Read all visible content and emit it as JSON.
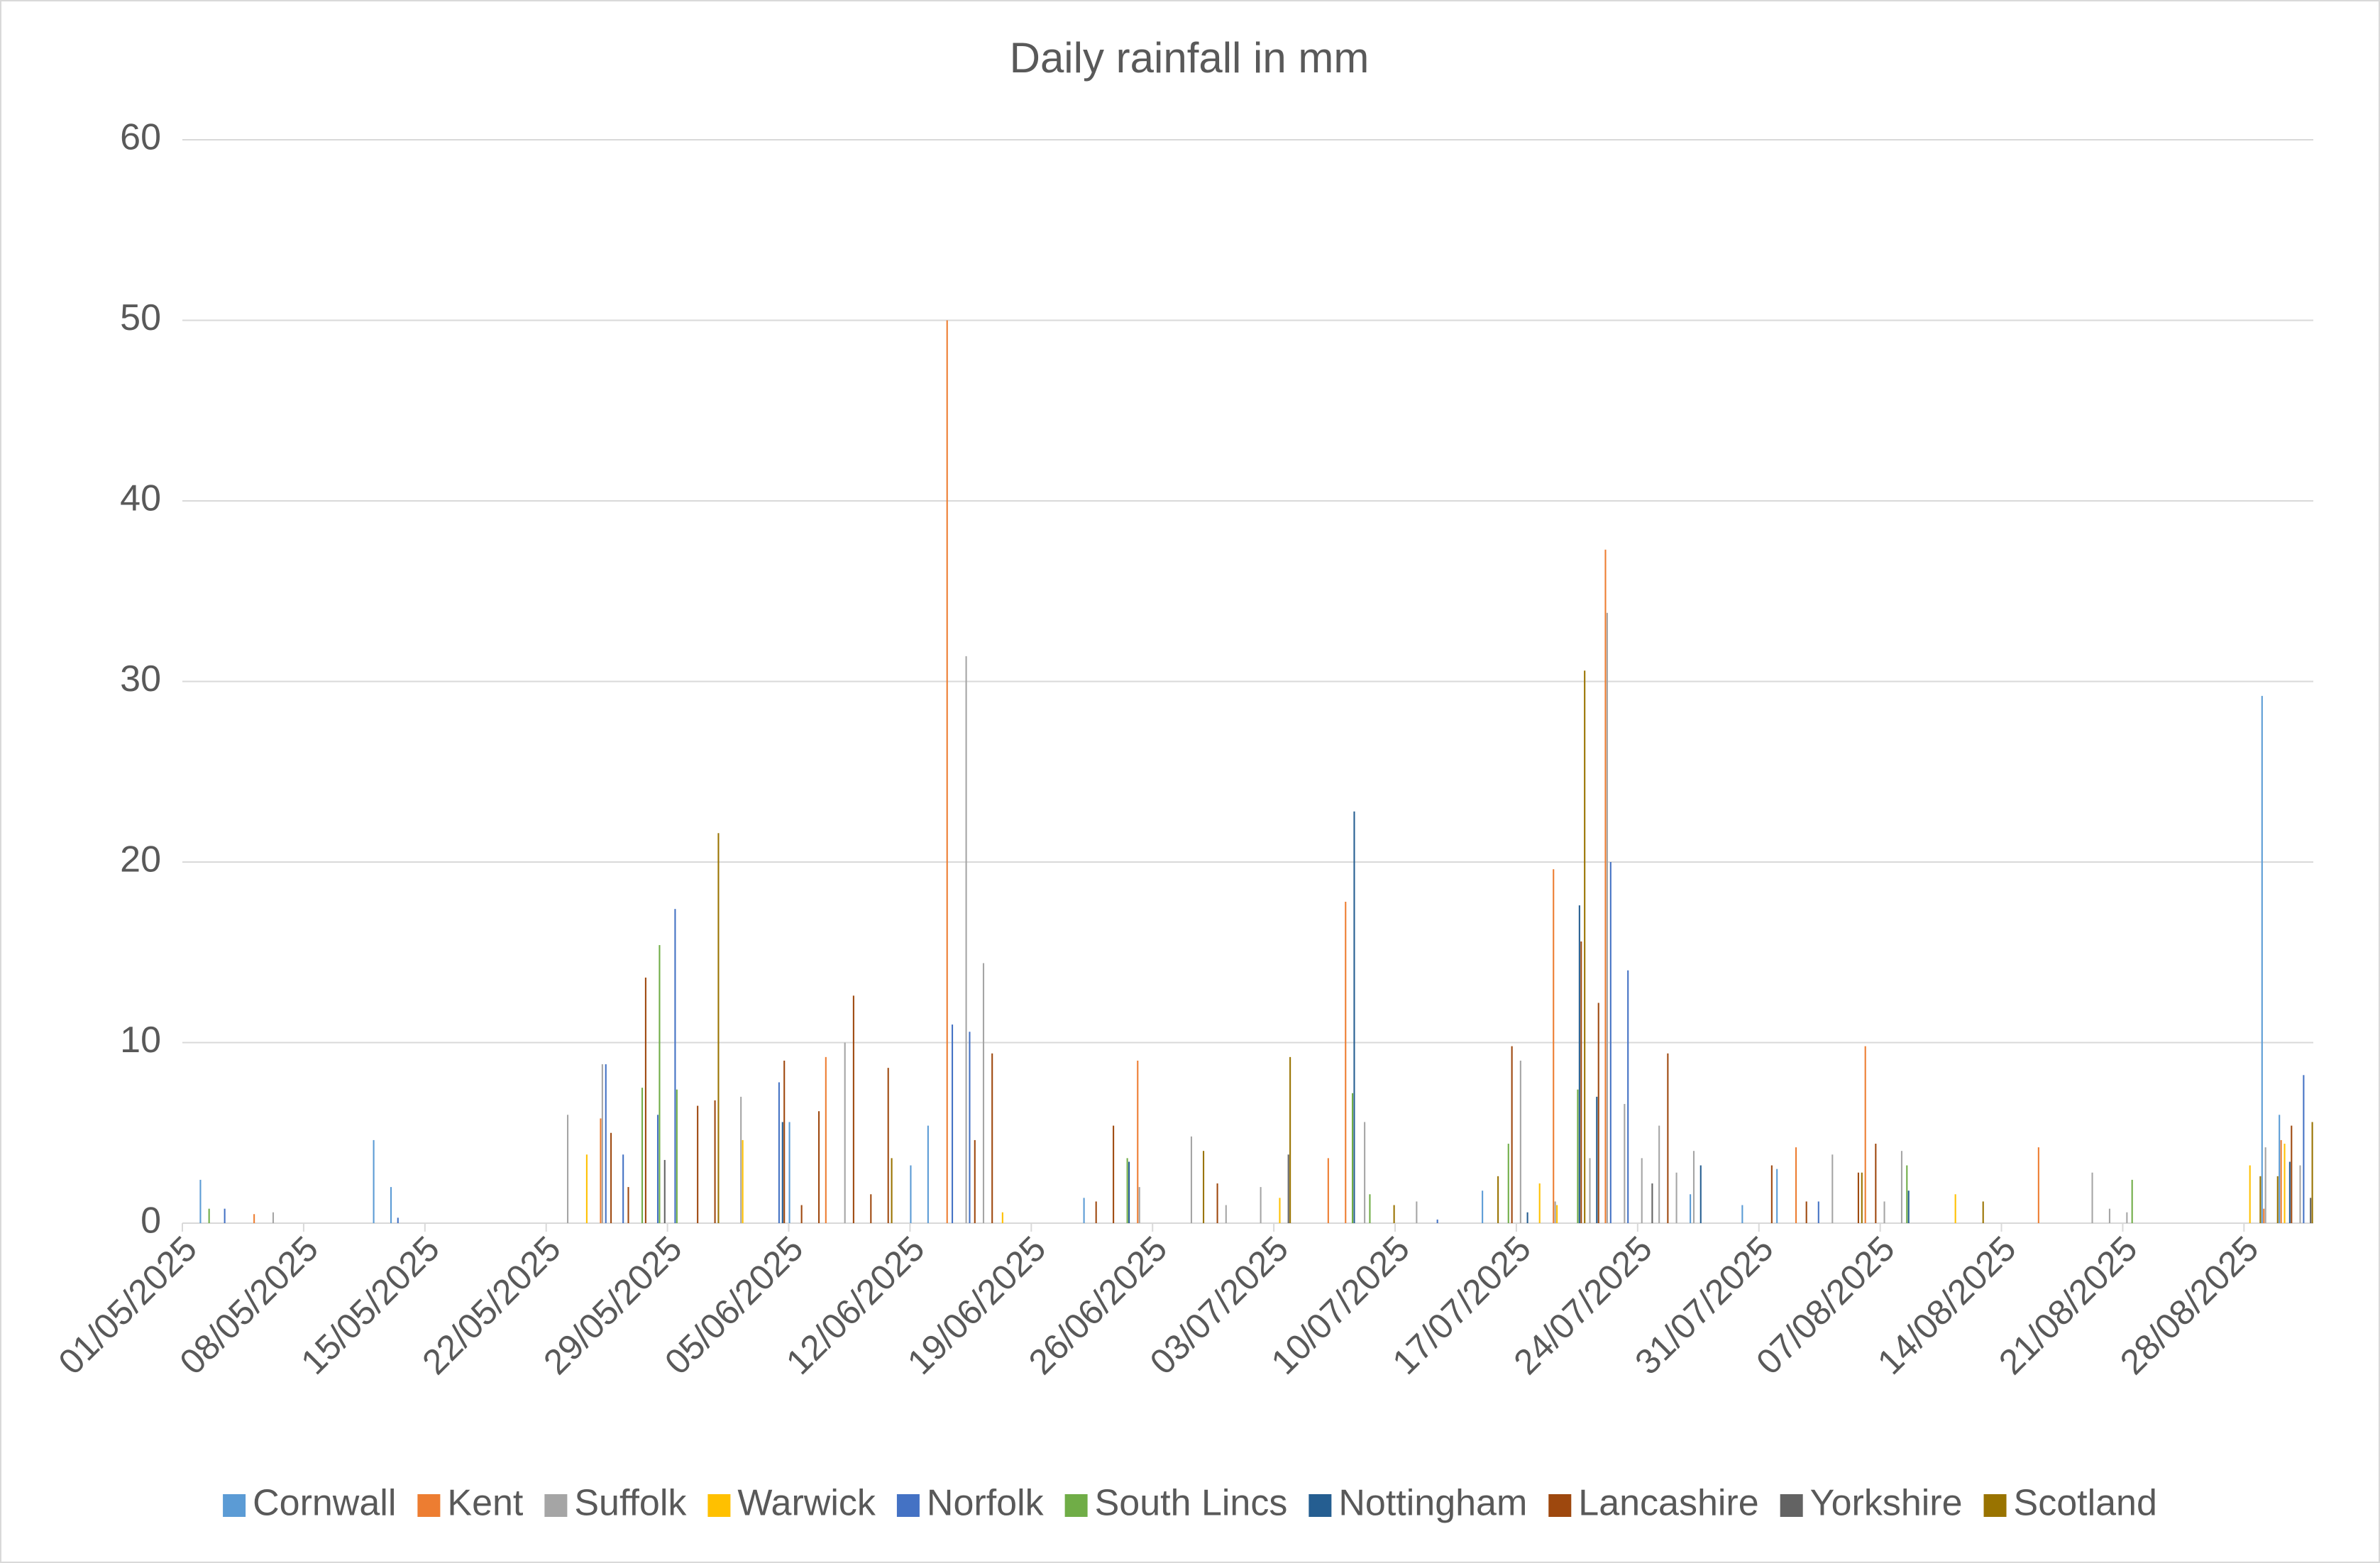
{
  "chart_data": {
    "type": "bar",
    "title": "Daily rainfall in mm",
    "categories": [
      "01/05/2025",
      null,
      null,
      null,
      null,
      null,
      null,
      "08/05/2025",
      null,
      null,
      null,
      null,
      null,
      null,
      "15/05/2025",
      null,
      null,
      null,
      null,
      null,
      null,
      "22/05/2025",
      null,
      null,
      null,
      null,
      null,
      null,
      "29/05/2025",
      null,
      null,
      null,
      null,
      null,
      null,
      "05/06/2025",
      null,
      null,
      null,
      null,
      null,
      null,
      "12/06/2025",
      null,
      null,
      null,
      null,
      null,
      null,
      "19/06/2025",
      null,
      null,
      null,
      null,
      null,
      null,
      "26/06/2025",
      null,
      null,
      null,
      null,
      null,
      null,
      "03/07/2025",
      null,
      null,
      null,
      null,
      null,
      null,
      "10/07/2025",
      null,
      null,
      null,
      null,
      null,
      null,
      "17/07/2025",
      null,
      null,
      null,
      null,
      null,
      null,
      "24/07/2025",
      null,
      null,
      null,
      null,
      null,
      null,
      "31/07/2025",
      null,
      null,
      null,
      null,
      null,
      null,
      "07/08/2025",
      null,
      null,
      null,
      null,
      null,
      null,
      "14/08/2025",
      null,
      null,
      null,
      null,
      null,
      null,
      "21/08/2025",
      null,
      null,
      null,
      null,
      null,
      null,
      "28/08/2025",
      null,
      null,
      null
    ],
    "series": [
      {
        "name": "Cornwall",
        "color": "#5B9BD5",
        "values": [
          0,
          2.4,
          0,
          0,
          0,
          0,
          0,
          0,
          0,
          0,
          0,
          4.6,
          2.0,
          0,
          0,
          0,
          0,
          0,
          0,
          0,
          0,
          0,
          0,
          0,
          0,
          0,
          0,
          0,
          0,
          0,
          0,
          0,
          0,
          0,
          0,
          5.6,
          0,
          0,
          0,
          0,
          0,
          0,
          3.2,
          5.4,
          0,
          0,
          0,
          0,
          0,
          0,
          0,
          0,
          1.4,
          0,
          0,
          0,
          0,
          0,
          0,
          0,
          0,
          0,
          0,
          0,
          0,
          0,
          0,
          0,
          0,
          0,
          0,
          0,
          0,
          0,
          0,
          1.8,
          0,
          0,
          0,
          0,
          0,
          0,
          0,
          0,
          0,
          0,
          0,
          1.6,
          0,
          0,
          1.0,
          0,
          3.0,
          0,
          0,
          0,
          0,
          0,
          0,
          0,
          0,
          0,
          0,
          0,
          0,
          0,
          0,
          0,
          0,
          0,
          0,
          0,
          0,
          0,
          0,
          0,
          0,
          0,
          0,
          0,
          29.2,
          6.0,
          0
        ]
      },
      {
        "name": "Kent",
        "color": "#ED7D31",
        "values": [
          0,
          0,
          0,
          0,
          0.5,
          0,
          0,
          0,
          0,
          0,
          0,
          0,
          0,
          0,
          0,
          0,
          0,
          0,
          0,
          0,
          0,
          0,
          0,
          0,
          5.8,
          0,
          0,
          0,
          0,
          0,
          0,
          0,
          0,
          0,
          0,
          0,
          0,
          9.2,
          0,
          0,
          0,
          0,
          0,
          0,
          50,
          0,
          0,
          0,
          0,
          0,
          0,
          0,
          0,
          0,
          0,
          9.0,
          0,
          0,
          0,
          0,
          0,
          0,
          0,
          0,
          0,
          0,
          3.6,
          17.8,
          0,
          0,
          0,
          0,
          0,
          0,
          0,
          0,
          0,
          0,
          0,
          19.6,
          0,
          0,
          37.3,
          0,
          0,
          0,
          0,
          0,
          0,
          0,
          0,
          0,
          0,
          4.2,
          0,
          0,
          0,
          9.8,
          0,
          0,
          0,
          0,
          0,
          0,
          0,
          0,
          0,
          4.2,
          0,
          0,
          0,
          0,
          0,
          0,
          0,
          0,
          0,
          0,
          0,
          0,
          0.8,
          4.6,
          0
        ]
      },
      {
        "name": "Suffolk",
        "color": "#A5A5A5",
        "values": [
          0,
          0,
          0,
          0,
          0,
          0.6,
          0,
          0,
          0,
          0,
          0,
          0,
          0,
          0,
          0,
          0,
          0,
          0,
          0,
          0,
          0,
          0,
          6.0,
          0,
          8.8,
          0,
          0,
          0,
          0,
          0,
          0,
          0,
          7.0,
          0,
          0,
          0,
          0,
          0,
          10.0,
          0,
          0,
          0,
          0,
          0,
          0,
          31.4,
          14.4,
          0,
          0,
          0,
          0,
          0,
          0,
          0,
          0,
          2.0,
          0,
          0,
          4.8,
          0,
          1.0,
          0,
          2.0,
          0,
          0,
          0,
          0,
          0,
          5.6,
          0,
          0,
          1.2,
          0,
          0,
          0,
          0,
          0,
          9.0,
          0,
          1.2,
          0,
          3.6,
          33.8,
          6.6,
          3.6,
          5.4,
          2.8,
          4.0,
          0,
          0,
          0,
          0,
          0,
          0,
          0,
          3.8,
          0,
          0,
          1.2,
          4.0,
          0,
          0,
          0,
          0,
          0,
          0,
          0,
          0,
          0,
          0,
          2.8,
          0.8,
          0.6,
          0,
          0,
          0,
          0,
          0,
          0,
          0,
          4.2,
          0,
          3.2
        ]
      },
      {
        "name": "Warwick",
        "color": "#FFC000",
        "values": [
          0,
          0,
          0,
          0,
          0,
          0,
          0,
          0,
          0,
          0,
          0,
          0,
          0,
          0,
          0,
          0,
          0,
          0,
          0,
          0,
          0,
          0,
          0,
          3.8,
          0,
          0,
          0,
          0,
          0,
          0,
          0,
          0,
          4.6,
          0,
          0,
          0,
          0,
          0,
          0,
          0,
          0,
          0,
          0,
          0,
          0,
          0,
          0,
          0.6,
          0,
          0,
          0,
          0,
          0,
          0,
          0,
          0,
          0,
          0,
          0,
          0,
          0,
          0,
          0,
          1.4,
          0,
          0,
          0,
          0,
          0,
          0,
          0,
          0,
          0,
          0,
          0,
          0,
          0,
          0,
          2.2,
          1.0,
          0,
          0,
          0,
          0,
          0,
          0,
          0,
          0,
          0,
          0,
          0,
          0,
          0,
          0,
          0,
          0,
          0,
          0,
          0,
          0,
          0,
          0,
          1.6,
          0,
          0,
          0,
          0,
          0,
          0,
          0,
          0,
          0,
          0,
          0,
          0,
          0,
          0,
          0,
          0,
          3.2,
          0,
          4.4,
          0
        ]
      },
      {
        "name": "Norfolk",
        "color": "#4472C4",
        "values": [
          0,
          0,
          0.8,
          0,
          0,
          0,
          0,
          0,
          0,
          0,
          0,
          0,
          0.3,
          0,
          0,
          0,
          0,
          0,
          0,
          0,
          0,
          0,
          0,
          0,
          8.8,
          3.8,
          0,
          6.0,
          17.4,
          0,
          0,
          0,
          0,
          0,
          7.8,
          0,
          0,
          0,
          0,
          0,
          0,
          0,
          0,
          0,
          11.0,
          10.6,
          0,
          0,
          0,
          0,
          0,
          0,
          0,
          0,
          0,
          0,
          0,
          0,
          0,
          0,
          0,
          0,
          0,
          0,
          0,
          0,
          0,
          0,
          0,
          0,
          0,
          0,
          0.2,
          0,
          0,
          0,
          0,
          0,
          0,
          0,
          0,
          0,
          20.0,
          14.0,
          0,
          0,
          0,
          0,
          0,
          0,
          0,
          0,
          0,
          0,
          1.2,
          0,
          0,
          0,
          0,
          0,
          0,
          0,
          0,
          0,
          0,
          0,
          0,
          0,
          0,
          0,
          0,
          0,
          0,
          0,
          0,
          0,
          0,
          0,
          0,
          0,
          0,
          0,
          8.2
        ]
      },
      {
        "name": "South Lincs",
        "color": "#70AD47",
        "values": [
          0,
          0.8,
          0,
          0,
          0,
          0,
          0,
          0,
          0,
          0,
          0,
          0,
          0,
          0,
          0,
          0,
          0,
          0,
          0,
          0,
          0,
          0,
          0,
          0,
          0,
          0,
          7.5,
          15.4,
          7.4,
          0,
          0,
          0,
          0,
          0,
          0,
          0,
          0,
          0,
          0,
          0,
          0,
          0,
          0,
          0,
          0,
          0,
          0,
          0,
          0,
          0,
          0,
          0,
          0,
          0,
          3.6,
          0,
          0,
          0,
          0,
          0,
          0,
          0,
          0,
          0,
          0,
          0,
          0,
          7.2,
          1.6,
          0,
          0,
          0,
          0,
          0,
          0,
          0,
          4.4,
          0,
          0,
          0,
          7.4,
          0,
          0,
          0,
          0,
          0,
          0,
          0,
          0,
          0,
          0,
          0,
          0,
          0,
          0,
          0,
          0,
          0,
          0,
          3.2,
          0,
          0,
          0,
          0,
          0,
          0,
          0,
          0,
          0,
          0,
          0,
          0,
          2.4,
          0,
          0,
          0,
          0,
          0,
          0,
          0,
          0,
          0,
          0
        ]
      },
      {
        "name": "Nottingham",
        "color": "#255E91",
        "values": [
          0,
          0,
          0,
          0,
          0,
          0,
          0,
          0,
          0,
          0,
          0,
          0,
          0,
          0,
          0,
          0,
          0,
          0,
          0,
          0,
          0,
          0,
          0,
          0,
          0,
          0,
          0,
          0,
          0,
          0,
          0,
          0,
          0,
          0,
          5.6,
          0,
          0,
          0,
          0,
          0,
          0,
          0,
          0,
          0,
          0,
          0,
          0,
          0,
          0,
          0,
          0,
          0,
          0,
          0,
          3.4,
          0,
          0,
          0,
          0,
          0,
          0,
          0,
          0,
          0,
          0,
          0,
          0,
          22.8,
          0,
          0,
          0,
          0,
          0,
          0,
          0,
          0,
          0,
          0.6,
          0,
          0,
          17.6,
          7.0,
          0,
          0,
          0,
          0,
          0,
          3.2,
          0,
          0,
          0,
          0,
          0,
          0,
          0,
          0,
          0,
          0,
          0,
          1.8,
          0,
          0,
          0,
          0,
          0,
          0,
          0,
          0,
          0,
          0,
          0,
          0,
          0,
          0,
          0,
          0,
          0,
          0,
          0,
          0,
          0,
          3.4,
          0
        ]
      },
      {
        "name": "Lancashire",
        "color": "#9E480E",
        "values": [
          0,
          0,
          0,
          0,
          0,
          0,
          0,
          0,
          0,
          0,
          0,
          0,
          0,
          0,
          0,
          0,
          0,
          0,
          0,
          0,
          0,
          0,
          0,
          0,
          5.0,
          2.0,
          13.6,
          0,
          0,
          6.5,
          6.8,
          0,
          0,
          0,
          9.0,
          1.0,
          6.2,
          0,
          12.6,
          1.6,
          8.6,
          0,
          0,
          0,
          0,
          4.6,
          9.4,
          0,
          0,
          0,
          0,
          0,
          1.2,
          5.4,
          0,
          0,
          0,
          0,
          0,
          2.2,
          0,
          0,
          0,
          0,
          0,
          0,
          0,
          0,
          0,
          0,
          0,
          0,
          0,
          0,
          0,
          0,
          9.8,
          0,
          0,
          0,
          15.6,
          12.2,
          0,
          0,
          0,
          9.4,
          0,
          0,
          0,
          0,
          0,
          3.2,
          0,
          1.2,
          0,
          0,
          2.8,
          4.4,
          0,
          0,
          0,
          0,
          0,
          0,
          0,
          0,
          0,
          0,
          0,
          0,
          0,
          0,
          0,
          0,
          0,
          0,
          0,
          0,
          0,
          0,
          0,
          5.4,
          0
        ]
      },
      {
        "name": "Yorkshire",
        "color": "#636363",
        "values": [
          0,
          0,
          0,
          0,
          0,
          0,
          0,
          0,
          0,
          0,
          0,
          0,
          0,
          0,
          0,
          0,
          0,
          0,
          0,
          0,
          0,
          0,
          0,
          0,
          0,
          0,
          0,
          3.5,
          0,
          0,
          0,
          0,
          0,
          0,
          0,
          0,
          0,
          0,
          0,
          0,
          0,
          0,
          0,
          0,
          0,
          0,
          0,
          0,
          0,
          0,
          0,
          0,
          0,
          0,
          0,
          0,
          0,
          0,
          0,
          0,
          0,
          0,
          0,
          3.8,
          0,
          0,
          0,
          0,
          0,
          0,
          0,
          0,
          0,
          0,
          0,
          0,
          0,
          0,
          0,
          0,
          0,
          0,
          0,
          0,
          2.2,
          0,
          0,
          0,
          0,
          0,
          0,
          0,
          0,
          0,
          0,
          0,
          0,
          0,
          0,
          0,
          0,
          0,
          0,
          0,
          0,
          0,
          0,
          0,
          0,
          0,
          0,
          0,
          0,
          0,
          0,
          0,
          0,
          0,
          0,
          0,
          0,
          0,
          1.4
        ]
      },
      {
        "name": "Scotland",
        "color": "#997300",
        "values": [
          0,
          0,
          0,
          0,
          0,
          0,
          0,
          0,
          0,
          0,
          0,
          0,
          0,
          0,
          0,
          0,
          0,
          0,
          0,
          0,
          0,
          0,
          0,
          0,
          0,
          0,
          0,
          0,
          0,
          0,
          21.6,
          0,
          0,
          0,
          0,
          0,
          0,
          0,
          0,
          0,
          3.6,
          0,
          0,
          0,
          0,
          0,
          0,
          0,
          0,
          0,
          0,
          0,
          0,
          0,
          0,
          0,
          0,
          0,
          4.0,
          0,
          0,
          0,
          0,
          9.2,
          0,
          0,
          0,
          0,
          0,
          1.0,
          0,
          0,
          0,
          0,
          0,
          2.6,
          0,
          0,
          0,
          0,
          30.6,
          0,
          0,
          0,
          0,
          0,
          0,
          0,
          0,
          0,
          0,
          0,
          0,
          0,
          0,
          0,
          2.8,
          0,
          0,
          0,
          0,
          0,
          0,
          1.2,
          0,
          0,
          0,
          0,
          0,
          0,
          0,
          0,
          0,
          0,
          0,
          0,
          0,
          0,
          0,
          2.6,
          2.6,
          0,
          5.6
        ]
      }
    ],
    "ylim": [
      0,
      60
    ],
    "yticks": [
      0,
      10,
      20,
      30,
      40,
      50,
      60
    ],
    "grid": true,
    "legend": "bottom"
  }
}
